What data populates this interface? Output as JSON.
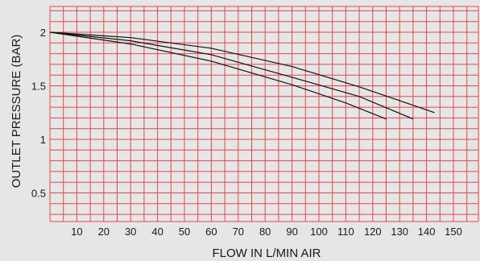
{
  "chart_data": {
    "type": "line",
    "xlabel": "FLOW  IN  L/MIN AIR",
    "ylabel": "OUTLET  PRESSURE (BAR)",
    "xlim": [
      0,
      160
    ],
    "ylim": [
      0,
      2.5
    ],
    "x_ticks": [
      10,
      20,
      30,
      40,
      50,
      60,
      70,
      80,
      90,
      100,
      110,
      120,
      130,
      140,
      150
    ],
    "y_ticks": [
      0.5,
      1,
      1.5,
      2
    ],
    "x_tick_labels": [
      "10",
      "20",
      "30",
      "40",
      "50",
      "60",
      "70",
      "80",
      "90",
      "100",
      "110",
      "120",
      "130",
      "140",
      "150"
    ],
    "y_tick_labels": [
      "0.5",
      "1",
      "1.5",
      "2"
    ],
    "grid": true,
    "grid_color": "#e04848",
    "line_color": "#111111",
    "series": [
      {
        "x": [
          0,
          30,
          60,
          90,
          115,
          143
        ],
        "y": [
          2.0,
          1.95,
          1.85,
          1.68,
          1.49,
          1.25
        ]
      },
      {
        "x": [
          0,
          30,
          60,
          90,
          115,
          135
        ],
        "y": [
          2.0,
          1.92,
          1.79,
          1.58,
          1.4,
          1.19
        ]
      },
      {
        "x": [
          0,
          30,
          60,
          90,
          110,
          125
        ],
        "y": [
          2.0,
          1.89,
          1.73,
          1.51,
          1.34,
          1.19
        ]
      }
    ]
  }
}
